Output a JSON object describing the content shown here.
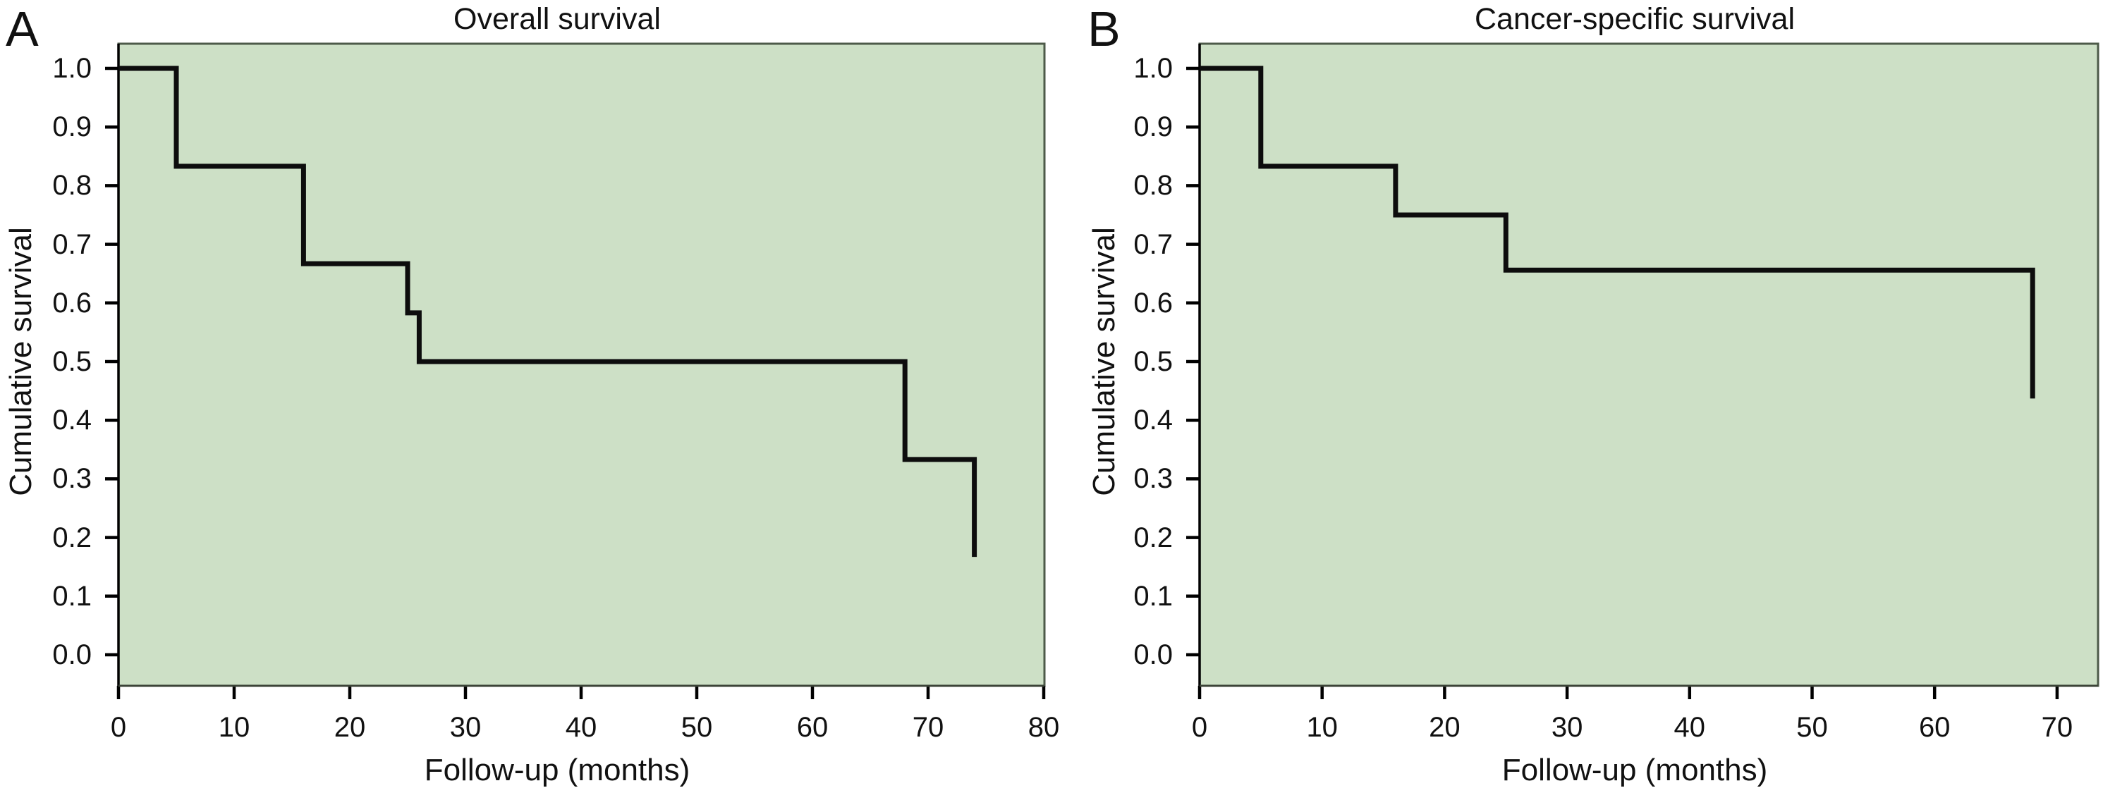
{
  "figure": {
    "background": "#ffffff",
    "panels": [
      {
        "panel_label": "A",
        "title": "Overall survival"
      },
      {
        "panel_label": "B",
        "title": "Cancer-specific survival"
      }
    ]
  },
  "colors": {
    "plot_background": "#cde0c6",
    "frame": "#4d5a49",
    "axis": "#000000",
    "curve": "#0d0d0d",
    "text": "#111111",
    "page_background": "#ffffff"
  },
  "chart_data": [
    {
      "type": "line",
      "subtype": "kaplan_meier_step",
      "panel_label": "A",
      "title": "Overall survival",
      "xlabel": "Follow-up (months)",
      "ylabel": "Cumulative survival",
      "xlim": [
        0,
        80
      ],
      "ylim": [
        0.0,
        1.0
      ],
      "grid": false,
      "legend": null,
      "xticks": [
        0,
        10,
        20,
        30,
        40,
        50,
        60,
        70,
        80
      ],
      "xtick_labels": [
        "0",
        "10",
        "20",
        "30",
        "40",
        "50",
        "60",
        "70",
        "80"
      ],
      "yticks": [
        0.0,
        0.1,
        0.2,
        0.3,
        0.4,
        0.5,
        0.6,
        0.7,
        0.8,
        0.9,
        1.0
      ],
      "ytick_labels": [
        "0.0",
        "0.1",
        "0.2",
        "0.3",
        "0.4",
        "0.5",
        "0.6",
        "0.7",
        "0.8",
        "0.9",
        "1.0"
      ],
      "steps": [
        [
          0,
          1.0
        ],
        [
          5,
          1.0
        ],
        [
          5,
          0.833
        ],
        [
          16,
          0.833
        ],
        [
          16,
          0.667
        ],
        [
          25,
          0.667
        ],
        [
          25,
          0.583
        ],
        [
          26,
          0.583
        ],
        [
          26,
          0.5
        ],
        [
          68,
          0.5
        ],
        [
          68,
          0.333
        ],
        [
          74,
          0.333
        ],
        [
          74,
          0.167
        ]
      ],
      "event_times_months": [
        5,
        16,
        25,
        26,
        68,
        74
      ],
      "survival_after_event": [
        0.833,
        0.667,
        0.583,
        0.5,
        0.333,
        0.167
      ]
    },
    {
      "type": "line",
      "subtype": "kaplan_meier_step",
      "panel_label": "B",
      "title": "Cancer-specific survival",
      "xlabel": "Follow-up (months)",
      "ylabel": "Cumulative survival",
      "xlim": [
        0,
        73
      ],
      "ylim": [
        0.0,
        1.0
      ],
      "grid": false,
      "legend": null,
      "xticks": [
        0,
        10,
        20,
        30,
        40,
        50,
        60,
        70
      ],
      "xtick_labels": [
        "0",
        "10",
        "20",
        "30",
        "40",
        "50",
        "60",
        "70"
      ],
      "yticks": [
        0.0,
        0.1,
        0.2,
        0.3,
        0.4,
        0.5,
        0.6,
        0.7,
        0.8,
        0.9,
        1.0
      ],
      "ytick_labels": [
        "0.0",
        "0.1",
        "0.2",
        "0.3",
        "0.4",
        "0.5",
        "0.6",
        "0.7",
        "0.8",
        "0.9",
        "1.0"
      ],
      "steps": [
        [
          0,
          1.0
        ],
        [
          5,
          1.0
        ],
        [
          5,
          0.833
        ],
        [
          16,
          0.833
        ],
        [
          16,
          0.75
        ],
        [
          25,
          0.75
        ],
        [
          25,
          0.656
        ],
        [
          68,
          0.656
        ],
        [
          68,
          0.437
        ]
      ],
      "event_times_months": [
        5,
        16,
        25,
        68
      ],
      "survival_after_event": [
        0.833,
        0.75,
        0.656,
        0.437
      ]
    }
  ]
}
